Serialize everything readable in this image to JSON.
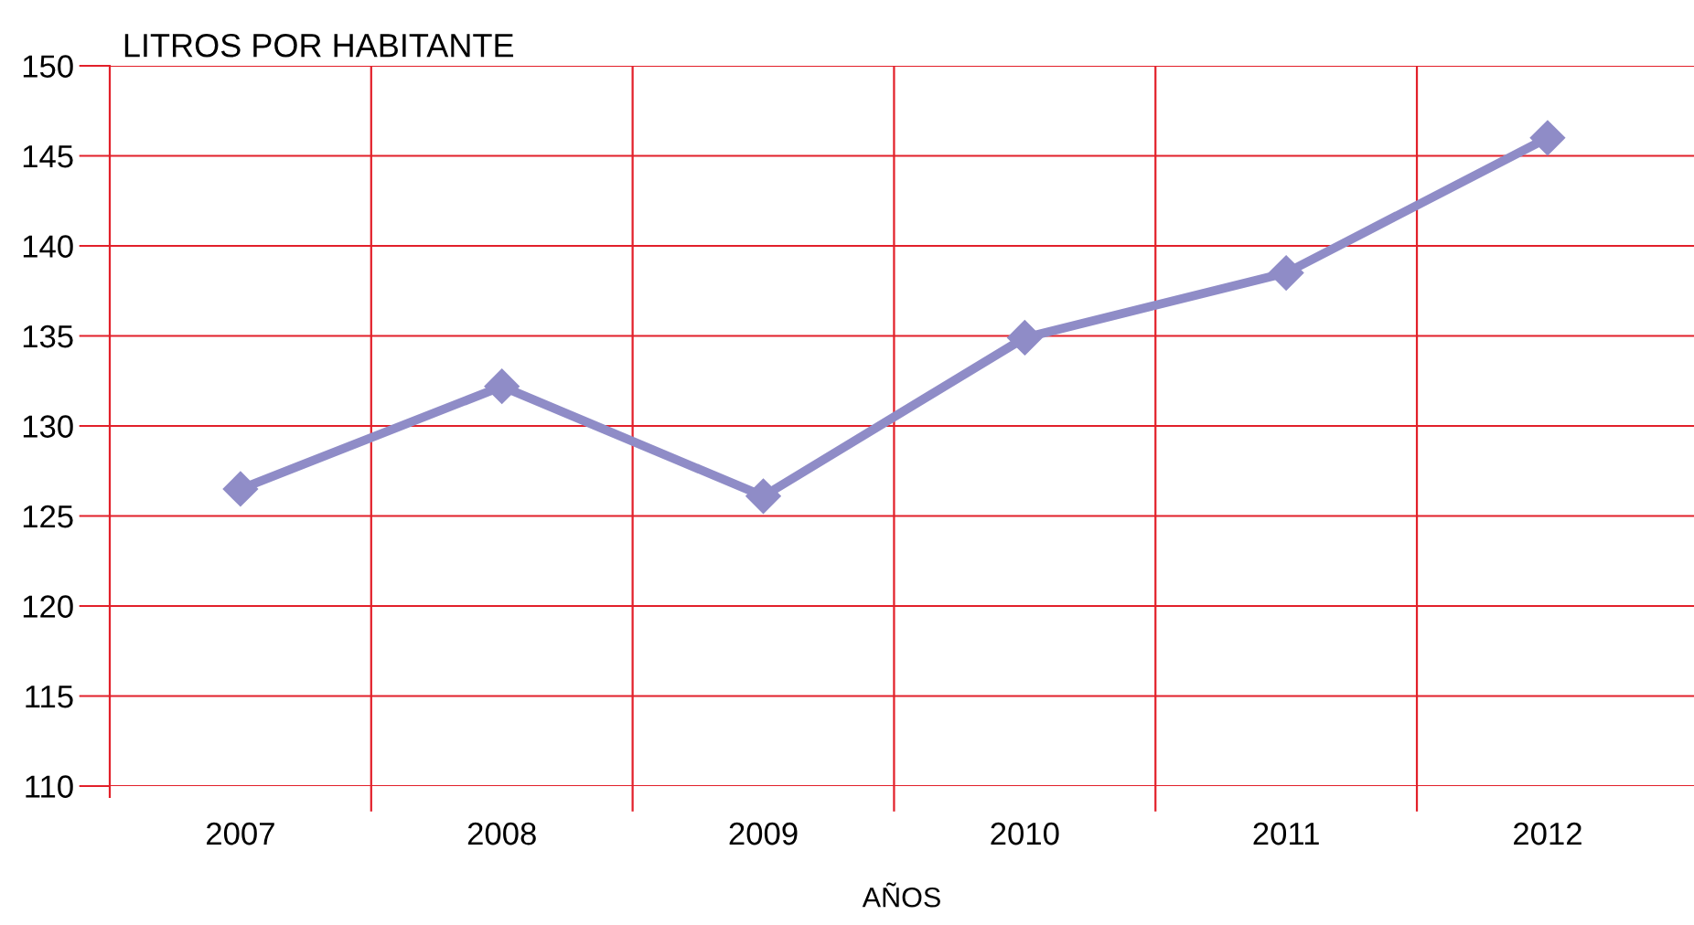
{
  "chart_data": {
    "type": "line",
    "ylabel": "LITROS POR HABITANTE",
    "xlabel": "AÑOS",
    "categories": [
      "2007",
      "2008",
      "2009",
      "2010",
      "2011",
      "2012"
    ],
    "series": [
      {
        "color": "#8f8cc7",
        "values": [
          126.5,
          132.2,
          126.1,
          134.9,
          138.5,
          146.0
        ]
      }
    ],
    "ylim": [
      110,
      150
    ],
    "yticks": [
      110,
      115,
      120,
      125,
      130,
      135,
      140,
      145,
      150
    ],
    "grid": true,
    "marker": "diamond",
    "line_style": "solid",
    "legend": false
  }
}
